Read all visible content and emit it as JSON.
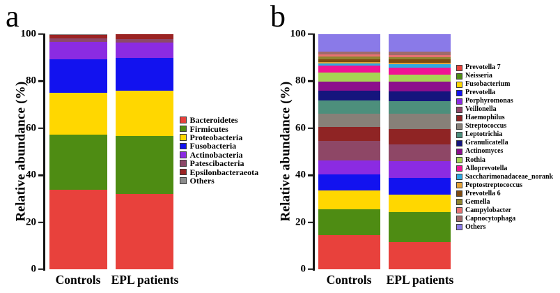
{
  "chart_data": [
    {
      "type": "bar",
      "stacked": true,
      "panel_label": "a",
      "ylabel": "Relative abundance (%)",
      "ylim": [
        0,
        100
      ],
      "yticks": [
        0,
        20,
        40,
        60,
        80,
        100
      ],
      "grid": false,
      "legend_position": "right",
      "categories": [
        "Controls",
        "EPL patients"
      ],
      "series": [
        {
          "name": "Bacteroidetes",
          "color": "#e8413c",
          "values": [
            33.8,
            32.0
          ]
        },
        {
          "name": "Firmicutes",
          "color": "#4e8c13",
          "values": [
            23.5,
            24.6
          ]
        },
        {
          "name": "Proteobacteria",
          "color": "#ffd700",
          "values": [
            17.7,
            19.3
          ]
        },
        {
          "name": "Fusobacteria",
          "color": "#1212ef",
          "values": [
            14.3,
            13.9
          ]
        },
        {
          "name": "Actinobacteria",
          "color": "#8b2be2",
          "values": [
            7.5,
            6.6
          ]
        },
        {
          "name": "Patescibacteria",
          "color": "#8c4868",
          "values": [
            1.5,
            1.5
          ]
        },
        {
          "name": "Epsilonbacteraeota",
          "color": "#9b2323",
          "values": [
            1.5,
            2.0
          ]
        },
        {
          "name": "Others",
          "color": "#8c8c8c",
          "values": [
            0.2,
            0.1
          ]
        }
      ]
    },
    {
      "type": "bar",
      "stacked": true,
      "panel_label": "b",
      "ylabel": "Relative abundance (%)",
      "ylim": [
        0,
        100
      ],
      "yticks": [
        0,
        20,
        40,
        60,
        80,
        100
      ],
      "grid": false,
      "legend_position": "right",
      "categories": [
        "Controls",
        "EPL patients"
      ],
      "series": [
        {
          "name": "Prevotella 7",
          "color": "#e8413c",
          "values": [
            14.4,
            11.6
          ]
        },
        {
          "name": "Neisseria",
          "color": "#4e8c13",
          "values": [
            11.2,
            12.7
          ]
        },
        {
          "name": "Fusobacterium",
          "color": "#ffd700",
          "values": [
            7.8,
            7.6
          ]
        },
        {
          "name": "Prevotella",
          "color": "#1212ef",
          "values": [
            6.9,
            7.1
          ]
        },
        {
          "name": "Porphyromonas",
          "color": "#8b2be2",
          "values": [
            6.1,
            7.1
          ]
        },
        {
          "name": "Veillonella",
          "color": "#8e4766",
          "values": [
            8.1,
            7.1
          ]
        },
        {
          "name": "Haemophilus",
          "color": "#8f2424",
          "values": [
            6.1,
            6.6
          ]
        },
        {
          "name": "Streptococcus",
          "color": "#878078",
          "values": [
            5.6,
            6.4
          ]
        },
        {
          "name": "Leptotrichia",
          "color": "#4d8f7c",
          "values": [
            5.6,
            5.3
          ]
        },
        {
          "name": "Granulicatella",
          "color": "#15157d",
          "values": [
            4.1,
            4.1
          ]
        },
        {
          "name": "Actinomyces",
          "color": "#8c0f8c",
          "values": [
            3.9,
            4.3
          ]
        },
        {
          "name": "Rothia",
          "color": "#a6d554",
          "values": [
            3.8,
            2.8
          ]
        },
        {
          "name": "Alloprevotella",
          "color": "#f01393",
          "values": [
            3.0,
            3.0
          ]
        },
        {
          "name": "Saccharimonadaceae_norank",
          "color": "#2fa8e0",
          "values": [
            0.9,
            1.5
          ]
        },
        {
          "name": "Peptostreptococcus",
          "color": "#e2a139",
          "values": [
            0.8,
            0.8
          ]
        },
        {
          "name": "Prevotella 6",
          "color": "#7d4a11",
          "values": [
            1.2,
            1.3
          ]
        },
        {
          "name": "Gemella",
          "color": "#8f8430",
          "values": [
            0.9,
            0.9
          ]
        },
        {
          "name": "Campylobacter",
          "color": "#e87272",
          "values": [
            0.9,
            0.9
          ]
        },
        {
          "name": "Capnocytophaga",
          "color": "#a06a6a",
          "values": [
            1.4,
            1.5
          ]
        },
        {
          "name": "Others",
          "color": "#8a7ae8",
          "values": [
            7.3,
            7.4
          ]
        }
      ]
    }
  ]
}
